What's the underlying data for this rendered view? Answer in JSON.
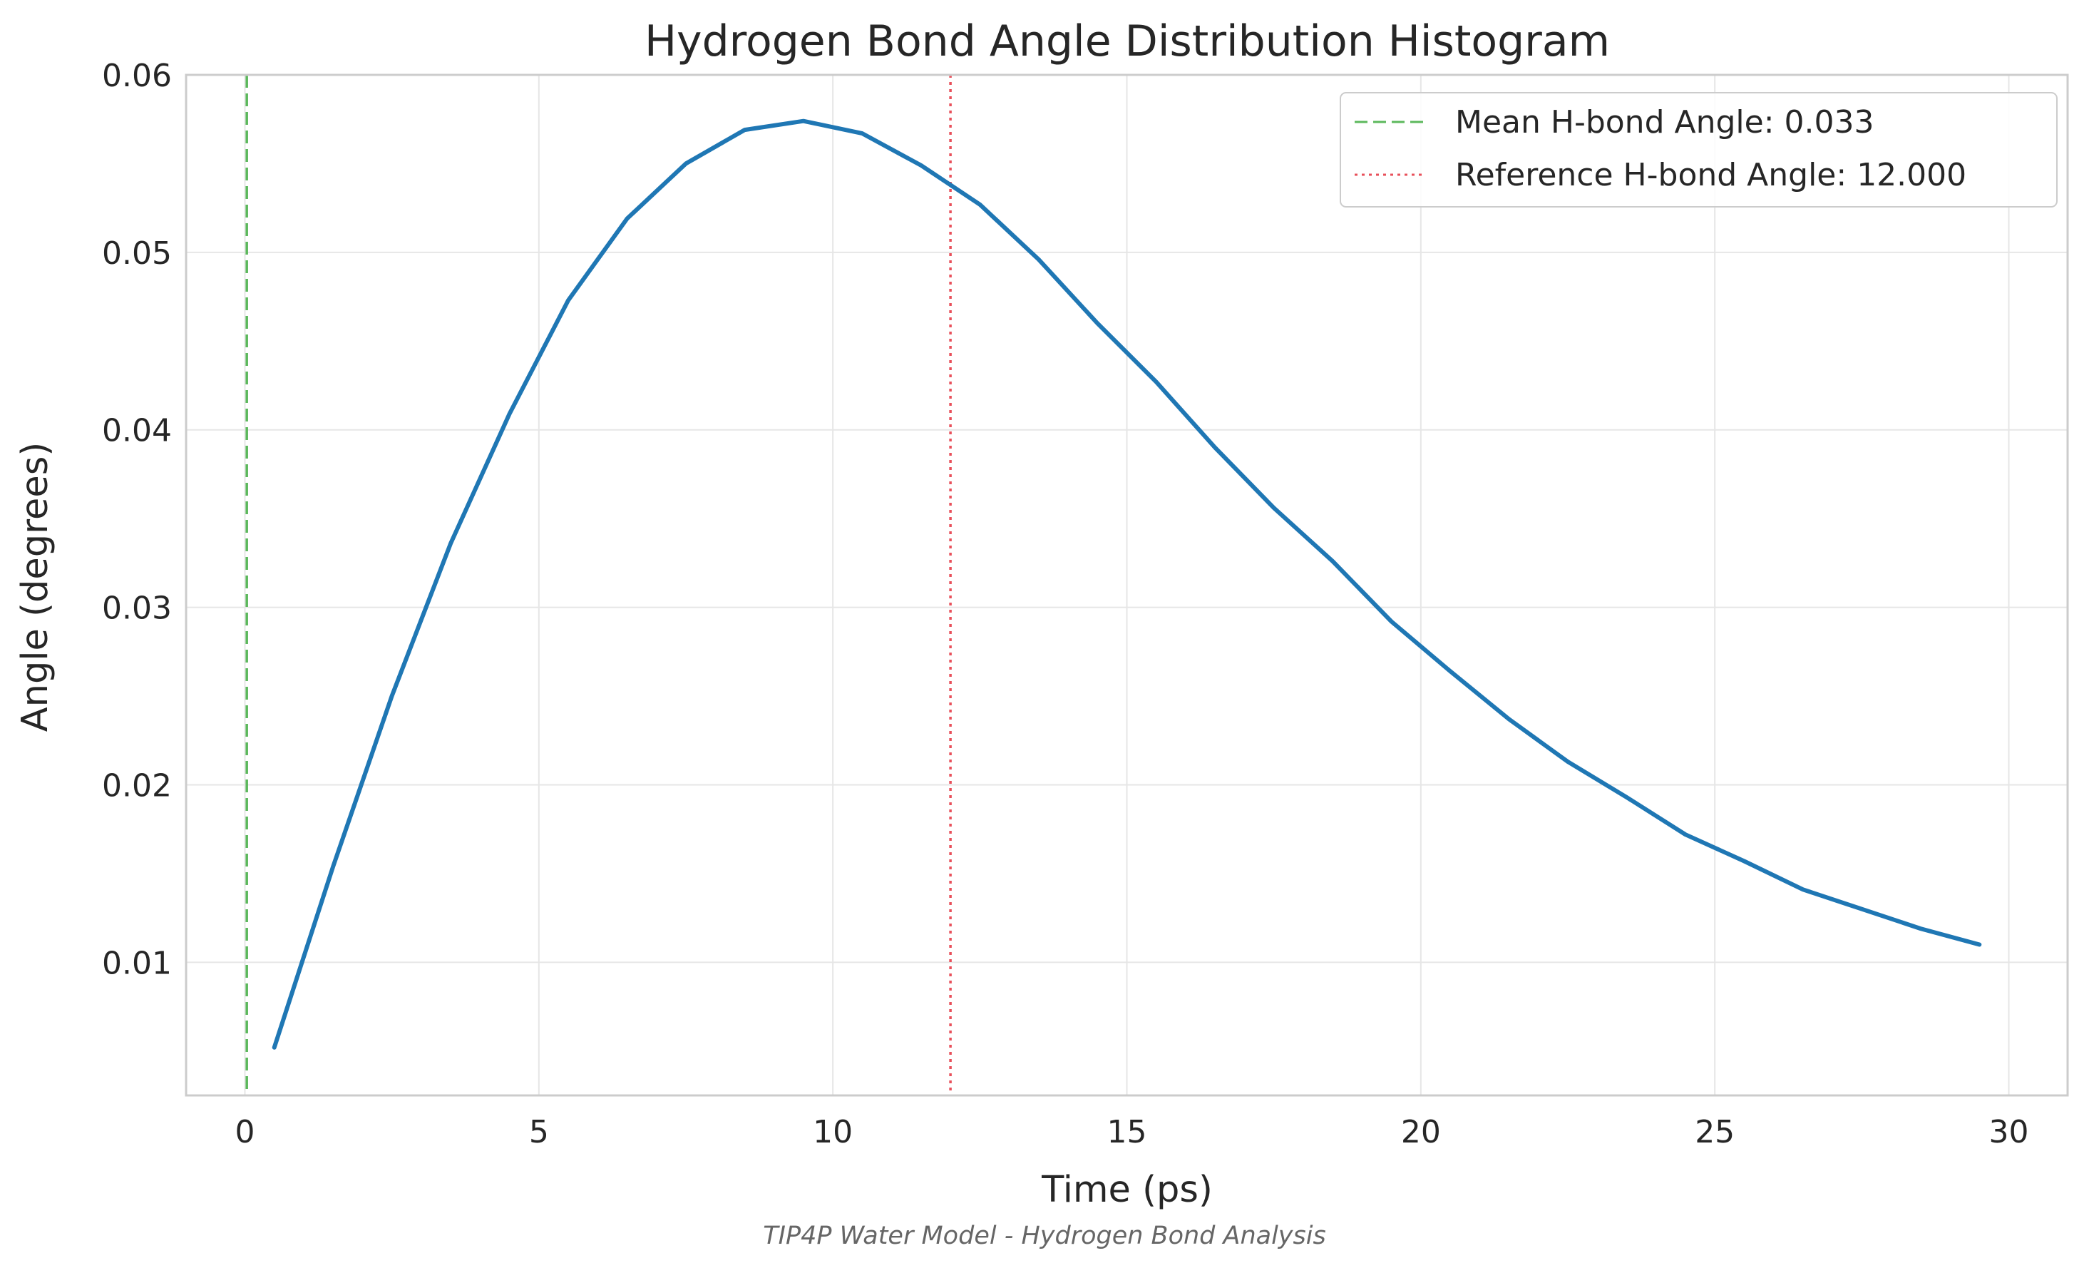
{
  "chart_data": {
    "type": "line",
    "title": "Hydrogen Bond Angle Distribution Histogram",
    "subtitle": "TIP4P Water Model - Hydrogen Bond Analysis",
    "xlabel": "Time (ps)",
    "ylabel": "Angle (degrees)",
    "xlim": [
      -1,
      31
    ],
    "ylim": [
      0.0025,
      0.06
    ],
    "xticks": [
      0,
      5,
      10,
      15,
      20,
      25,
      30
    ],
    "yticks": [
      0.01,
      0.02,
      0.03,
      0.04,
      0.05,
      0.06
    ],
    "ytick_labels": [
      "0.01",
      "0.02",
      "0.03",
      "0.04",
      "0.05",
      "0.06"
    ],
    "grid": true,
    "legend_position": "top-right",
    "series": [
      {
        "color": "#1f77b4",
        "x": [
          0.5,
          1.5,
          2.5,
          3.5,
          4.5,
          5.5,
          6.5,
          7.5,
          8.5,
          9.5,
          10.5,
          11.5,
          12.5,
          13.5,
          14.5,
          15.5,
          16.5,
          17.5,
          18.5,
          19.5,
          20.5,
          21.5,
          22.5,
          23.5,
          24.5,
          25.5,
          26.5,
          27.5,
          28.5,
          29.5
        ],
        "y": [
          0.0052,
          0.0154,
          0.025,
          0.0336,
          0.0409,
          0.0473,
          0.0519,
          0.055,
          0.0569,
          0.0574,
          0.0567,
          0.0549,
          0.0527,
          0.0496,
          0.046,
          0.0427,
          0.039,
          0.0356,
          0.0326,
          0.0292,
          0.0264,
          0.0237,
          0.0213,
          0.0193,
          0.0172,
          0.0157,
          0.0141,
          0.013,
          0.0119,
          0.011
        ]
      }
    ],
    "reference_lines": [
      {
        "label": "Mean H-bond Angle: 0.033",
        "x": 0.033,
        "color": "#5cb85c",
        "style": "dashed"
      },
      {
        "label": "Reference H-bond Angle: 12.000",
        "x": 12.0,
        "color": "#e8505b",
        "style": "dotted"
      }
    ]
  }
}
